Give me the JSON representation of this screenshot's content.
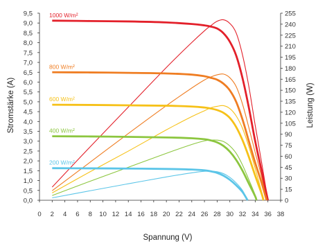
{
  "chart_data": {
    "type": "line",
    "xlabel": "Spannung (V)",
    "ylabel_left": "Stromstärke (A)",
    "ylabel_right": "Leistung (W)",
    "xlim": [
      0,
      38
    ],
    "ylim_left": [
      0,
      9.5
    ],
    "ylim_right": [
      0,
      255
    ],
    "x_ticks": [
      "0",
      "2",
      "4",
      "6",
      "8",
      "10",
      "12",
      "14",
      "16",
      "18",
      "20",
      "22",
      "24",
      "26",
      "28",
      "30",
      "32",
      "34",
      "36",
      "38"
    ],
    "y_left_ticks": [
      "0,0",
      "0,5",
      "1,0",
      "1,5",
      "2,0",
      "2,5",
      "3,0",
      "3,5",
      "4,0",
      "4,5",
      "5,0",
      "5,5",
      "6,0",
      "6,5",
      "7,0",
      "7,5",
      "8,0",
      "8,5",
      "9,0",
      "9,5"
    ],
    "y_right_ticks": [
      "0",
      "15",
      "30",
      "45",
      "60",
      "75",
      "90",
      "105",
      "120",
      "135",
      "150",
      "165",
      "180",
      "195",
      "210",
      "225",
      "240",
      "255"
    ],
    "grid": false,
    "series": [
      {
        "name": "1000 W/m²",
        "color": "#e3202a",
        "current": [
          [
            2,
            9.12
          ],
          [
            8,
            9.1
          ],
          [
            14,
            9.08
          ],
          [
            20,
            9.03
          ],
          [
            24,
            8.95
          ],
          [
            26,
            8.88
          ],
          [
            27,
            8.82
          ],
          [
            28,
            8.72
          ],
          [
            29,
            8.48
          ],
          [
            30,
            8.05
          ],
          [
            31,
            7.35
          ],
          [
            32,
            6.2
          ],
          [
            33,
            4.7
          ],
          [
            34,
            3.0
          ],
          [
            35,
            1.5
          ],
          [
            36,
            0.0
          ]
        ],
        "power": [
          [
            2,
            18
          ],
          [
            8,
            73
          ],
          [
            14,
            127
          ],
          [
            20,
            181
          ],
          [
            24,
            215
          ],
          [
            26,
            231
          ],
          [
            27,
            238
          ],
          [
            28,
            244
          ],
          [
            29,
            246
          ],
          [
            30,
            241
          ],
          [
            31,
            228
          ],
          [
            32,
            198
          ],
          [
            33,
            155
          ],
          [
            34,
            102
          ],
          [
            35,
            52
          ],
          [
            36,
            0
          ]
        ]
      },
      {
        "name": "800 W/m²",
        "color": "#ef7d22",
        "current": [
          [
            2,
            6.5
          ],
          [
            8,
            6.49
          ],
          [
            14,
            6.47
          ],
          [
            20,
            6.44
          ],
          [
            24,
            6.38
          ],
          [
            26,
            6.3
          ],
          [
            27,
            6.22
          ],
          [
            28,
            6.12
          ],
          [
            29,
            5.92
          ],
          [
            30,
            5.58
          ],
          [
            31,
            5.0
          ],
          [
            32,
            4.1
          ],
          [
            33,
            3.0
          ],
          [
            34,
            1.9
          ],
          [
            35,
            0.9
          ],
          [
            35.8,
            0.0
          ]
        ],
        "power": [
          [
            2,
            13
          ],
          [
            8,
            52
          ],
          [
            14,
            91
          ],
          [
            20,
            129
          ],
          [
            24,
            153
          ],
          [
            26,
            164
          ],
          [
            27,
            168
          ],
          [
            28,
            171
          ],
          [
            29,
            172
          ],
          [
            30,
            167
          ],
          [
            31,
            155
          ],
          [
            32,
            131
          ],
          [
            33,
            99
          ],
          [
            34,
            65
          ],
          [
            35,
            32
          ],
          [
            35.8,
            0
          ]
        ]
      },
      {
        "name": "600 W/m²",
        "color": "#f6c118",
        "current": [
          [
            2,
            4.85
          ],
          [
            8,
            4.84
          ],
          [
            14,
            4.82
          ],
          [
            20,
            4.8
          ],
          [
            24,
            4.76
          ],
          [
            26,
            4.71
          ],
          [
            27,
            4.66
          ],
          [
            28,
            4.58
          ],
          [
            29,
            4.44
          ],
          [
            30,
            4.18
          ],
          [
            31,
            3.72
          ],
          [
            32,
            3.05
          ],
          [
            33,
            2.2
          ],
          [
            34,
            1.25
          ],
          [
            35,
            0.35
          ],
          [
            35.3,
            0.0
          ]
        ],
        "power": [
          [
            2,
            10
          ],
          [
            8,
            39
          ],
          [
            14,
            67
          ],
          [
            20,
            96
          ],
          [
            24,
            114
          ],
          [
            26,
            122
          ],
          [
            27,
            126
          ],
          [
            28,
            128
          ],
          [
            29,
            129
          ],
          [
            30,
            125
          ],
          [
            31,
            115
          ],
          [
            32,
            98
          ],
          [
            33,
            73
          ],
          [
            34,
            43
          ],
          [
            35,
            12
          ],
          [
            35.3,
            0
          ]
        ]
      },
      {
        "name": "400 W/m²",
        "color": "#8cc63f",
        "current": [
          [
            2,
            3.25
          ],
          [
            8,
            3.24
          ],
          [
            14,
            3.22
          ],
          [
            20,
            3.19
          ],
          [
            24,
            3.15
          ],
          [
            26,
            3.1
          ],
          [
            27,
            3.04
          ],
          [
            28,
            2.94
          ],
          [
            29,
            2.76
          ],
          [
            30,
            2.47
          ],
          [
            31,
            2.05
          ],
          [
            32,
            1.5
          ],
          [
            33,
            0.85
          ],
          [
            34,
            0.2
          ],
          [
            34.2,
            0.0
          ]
        ],
        "power": [
          [
            2,
            6.5
          ],
          [
            8,
            26
          ],
          [
            14,
            45
          ],
          [
            20,
            64
          ],
          [
            24,
            76
          ],
          [
            26,
            81
          ],
          [
            27,
            82
          ],
          [
            28,
            82
          ],
          [
            29,
            80
          ],
          [
            30,
            74
          ],
          [
            31,
            64
          ],
          [
            32,
            48
          ],
          [
            33,
            28
          ],
          [
            34,
            7
          ],
          [
            34.2,
            0
          ]
        ]
      },
      {
        "name": "200 W/m²",
        "color": "#5bc5e8",
        "current": [
          [
            2,
            1.63
          ],
          [
            8,
            1.62
          ],
          [
            14,
            1.61
          ],
          [
            20,
            1.59
          ],
          [
            24,
            1.56
          ],
          [
            26,
            1.52
          ],
          [
            27,
            1.47
          ],
          [
            28,
            1.39
          ],
          [
            29,
            1.25
          ],
          [
            30,
            1.04
          ],
          [
            31,
            0.76
          ],
          [
            32,
            0.42
          ],
          [
            32.8,
            0.0
          ]
        ],
        "power": [
          [
            2,
            3.3
          ],
          [
            8,
            13
          ],
          [
            14,
            22.5
          ],
          [
            20,
            31.8
          ],
          [
            24,
            37.4
          ],
          [
            26,
            39.5
          ],
          [
            27,
            39.7
          ],
          [
            28,
            38.9
          ],
          [
            29,
            36.3
          ],
          [
            30,
            31.2
          ],
          [
            31,
            23.6
          ],
          [
            32,
            13.4
          ],
          [
            32.8,
            0
          ]
        ]
      }
    ]
  }
}
